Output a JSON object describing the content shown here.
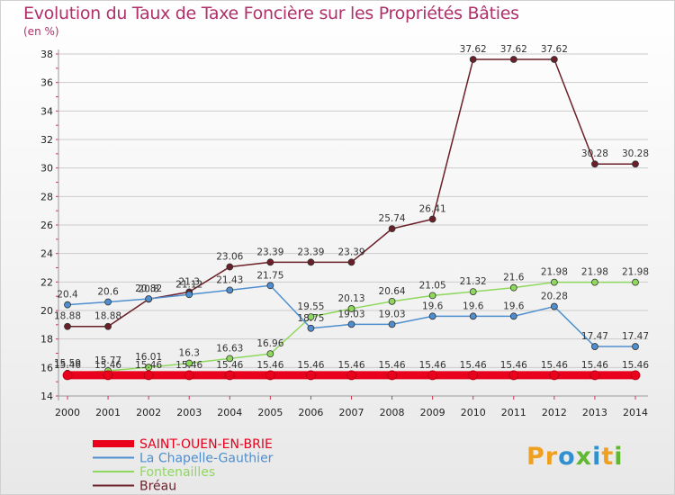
{
  "header": {
    "title": "Evolution du Taux de Taxe Foncière sur les Propriétés Bâties",
    "unit": "(en %)"
  },
  "logo": {
    "text": "Proxiti",
    "icon": "proxiti-logo-icon"
  },
  "colors": {
    "title": "#b0306a",
    "grid": "#cccccc",
    "axis": "#999999"
  },
  "chart_data": {
    "type": "line",
    "title": "Evolution du Taux de Taxe Foncière sur les Propriétés Bâties",
    "ylabel": "(en %)",
    "xlabel": "",
    "x": [
      "2000",
      "2001",
      "2002",
      "2003",
      "2004",
      "2005",
      "2006",
      "2007",
      "2008",
      "2009",
      "2010",
      "2011",
      "2012",
      "2013",
      "2014"
    ],
    "ylim": [
      14,
      38
    ],
    "yticks": [
      14,
      16,
      18,
      20,
      22,
      24,
      26,
      28,
      30,
      32,
      34,
      36,
      38
    ],
    "grid": "horizontal",
    "legend_position": "bottom-left",
    "series": [
      {
        "name": "SAINT-OUEN-EN-BRIE",
        "color": "#e8001c",
        "values": [
          15.46,
          15.46,
          15.46,
          15.46,
          15.46,
          15.46,
          15.46,
          15.46,
          15.46,
          15.46,
          15.46,
          15.46,
          15.46,
          15.46,
          15.46
        ],
        "labels": [
          "15.46",
          "15.46",
          "15.46",
          "15.46",
          "15.46",
          "15.46",
          "15.46",
          "15.46",
          "15.46",
          "15.46",
          "15.46",
          "15.46",
          "15.46",
          "15.46",
          "15.46"
        ]
      },
      {
        "name": "La Chapelle-Gauthier",
        "color": "#4f8fcf",
        "values": [
          20.4,
          20.6,
          20.82,
          21.12,
          21.43,
          21.75,
          18.75,
          19.03,
          19.03,
          19.6,
          19.6,
          19.6,
          20.28,
          17.47,
          17.47
        ],
        "labels": [
          "20.4",
          "20.6",
          "20.82",
          "21.12",
          "21.43",
          "21.75",
          "18.75",
          "19.03",
          "19.03",
          "19.6",
          "19.6",
          "19.6",
          "20.28",
          "17.47",
          "17.47"
        ]
      },
      {
        "name": "Fontenailles",
        "color": "#8fd85e",
        "values": [
          15.59,
          15.77,
          16.01,
          16.3,
          16.63,
          16.96,
          19.55,
          20.13,
          20.64,
          21.05,
          21.32,
          21.6,
          21.98,
          21.98,
          21.98
        ],
        "labels": [
          "15.59",
          "15.77",
          "16.01",
          "16.3",
          "16.63",
          "16.96",
          "19.55",
          "20.13",
          "20.64",
          "21.05",
          "21.32",
          "21.6",
          "21.98",
          "21.98",
          "21.98"
        ]
      },
      {
        "name": "Bréau",
        "color": "#6b1f28",
        "values": [
          18.88,
          18.88,
          20.8,
          21.3,
          23.06,
          23.39,
          23.39,
          23.39,
          25.74,
          26.41,
          37.62,
          37.62,
          37.62,
          30.28,
          30.28
        ],
        "labels": [
          "18.88",
          "18.88",
          "20.8",
          "21.3",
          "23.06",
          "23.39",
          "23.39",
          "23.39",
          "25.74",
          "26.41",
          "37.62",
          "37.62",
          "37.62",
          "30.28",
          "30.28"
        ]
      }
    ]
  }
}
